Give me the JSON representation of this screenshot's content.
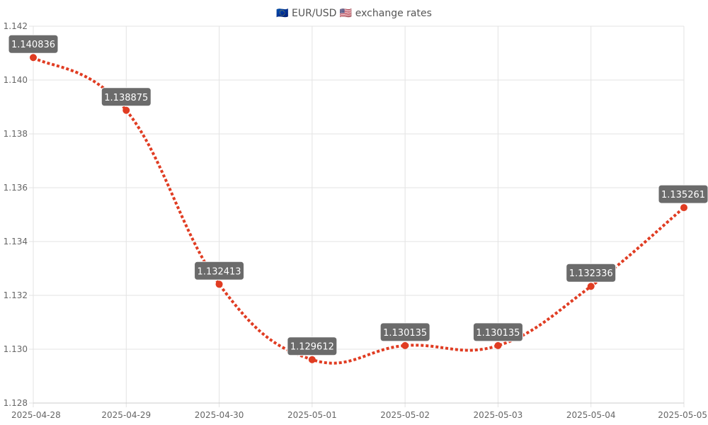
{
  "chart_data": {
    "type": "line",
    "title": "🇪🇺 EUR/USD 🇺🇸 exchange rates",
    "xlabel": "",
    "ylabel": "",
    "categories": [
      "2025-04-28",
      "2025-04-29",
      "2025-04-30",
      "2025-05-01",
      "2025-05-02",
      "2025-05-03",
      "2025-05-04",
      "2025-05-05"
    ],
    "series": [
      {
        "values": [
          1.140836,
          1.138875,
          1.132413,
          1.129612,
          1.130135,
          1.130135,
          1.132336,
          1.135261
        ],
        "labels": [
          "1.140836",
          "1.138875",
          "1.132413",
          "1.129612",
          "1.130135",
          "1.130135",
          "1.132336",
          "1.135261"
        ],
        "color": "#e03c22",
        "line_style": "dotted",
        "smooth": true
      }
    ],
    "ylim": [
      1.128,
      1.142
    ],
    "yticks": [
      "1.142",
      "1.140",
      "1.138",
      "1.136",
      "1.134",
      "1.132",
      "1.130",
      "1.128"
    ],
    "grid": true,
    "legend": "none",
    "data_labels": true,
    "label_background": "#6b6b6b"
  }
}
